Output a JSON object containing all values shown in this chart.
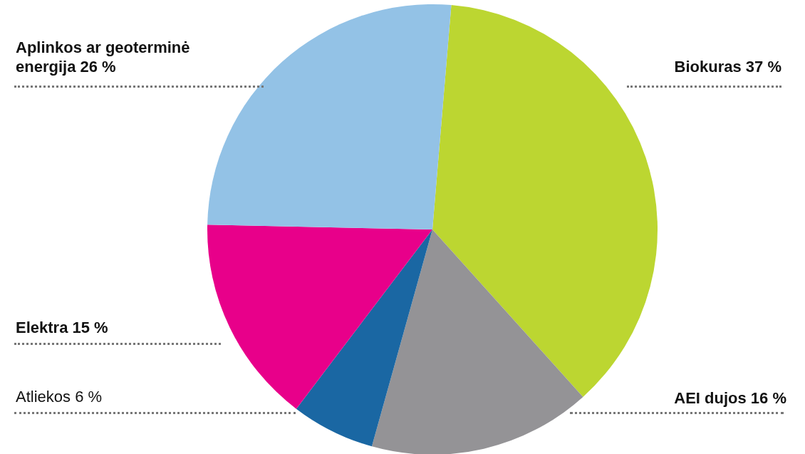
{
  "chart_data": {
    "type": "pie",
    "categories": [
      "Biokuras",
      "AEI dujos",
      "Atliekos",
      "Elektra",
      "Aplinkos ar geoterminė energija"
    ],
    "values": [
      37,
      16,
      6,
      15,
      26
    ],
    "value_labels": [
      "37 %",
      "16 %",
      "6 %",
      "15 %",
      "26 %"
    ],
    "colors": [
      "#bcd631",
      "#949396",
      "#1a67a3",
      "#e8008a",
      "#93c2e6"
    ]
  }
}
